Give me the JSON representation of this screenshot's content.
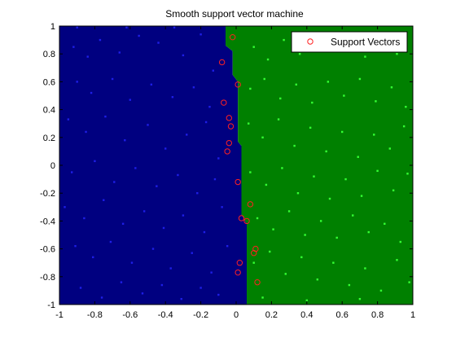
{
  "chart_data": {
    "type": "scatter",
    "title": "Smooth support vector machine",
    "xlabel": "",
    "ylabel": "",
    "xlim": [
      -1,
      1
    ],
    "ylim": [
      -1,
      1
    ],
    "grid": false,
    "legend_position": "top-right",
    "x_ticks": [
      -1,
      -0.8,
      -0.6,
      -0.4,
      -0.2,
      0,
      0.2,
      0.4,
      0.6,
      0.8,
      1
    ],
    "y_ticks": [
      -1,
      -0.8,
      -0.6,
      -0.4,
      -0.2,
      0,
      0.2,
      0.4,
      0.6,
      0.8,
      1
    ],
    "x_tick_labels": [
      "-1",
      "-0.8",
      "-0.6",
      "-0.4",
      "-0.2",
      "0",
      "0.2",
      "0.4",
      "0.6",
      "0.8",
      "1"
    ],
    "y_tick_labels": [
      "-1",
      "-0.8",
      "-0.6",
      "-0.4",
      "-0.2",
      "0",
      "0.2",
      "0.4",
      "0.6",
      "0.8",
      "1"
    ],
    "decision_boundary": {
      "points": [
        [
          -0.06,
          1.0
        ],
        [
          -0.06,
          0.86
        ],
        [
          -0.02,
          0.82
        ],
        [
          -0.02,
          0.65
        ],
        [
          0.01,
          0.6
        ],
        [
          0.01,
          0.17
        ],
        [
          0.03,
          0.14
        ],
        [
          0.03,
          -0.35
        ],
        [
          0.06,
          -0.42
        ],
        [
          0.06,
          -1.0
        ]
      ],
      "left_region_color": "#000080",
      "right_region_color": "#008000"
    },
    "series": [
      {
        "name": "",
        "color": "#1e1ee6",
        "marker": "dot",
        "points": [
          [
            -0.92,
            0.85
          ],
          [
            -0.84,
            0.78
          ],
          [
            -0.77,
            0.9
          ],
          [
            -0.66,
            0.81
          ],
          [
            -0.55,
            0.93
          ],
          [
            -0.44,
            0.88
          ],
          [
            -0.3,
            0.79
          ],
          [
            -0.2,
            0.94
          ],
          [
            -0.13,
            0.68
          ],
          [
            -0.9,
            0.6
          ],
          [
            -0.82,
            0.52
          ],
          [
            -0.7,
            0.62
          ],
          [
            -0.6,
            0.47
          ],
          [
            -0.48,
            0.58
          ],
          [
            -0.36,
            0.49
          ],
          [
            -0.24,
            0.56
          ],
          [
            -0.15,
            0.42
          ],
          [
            -0.95,
            0.33
          ],
          [
            -0.85,
            0.24
          ],
          [
            -0.74,
            0.35
          ],
          [
            -0.63,
            0.18
          ],
          [
            -0.5,
            0.29
          ],
          [
            -0.4,
            0.12
          ],
          [
            -0.28,
            0.22
          ],
          [
            -0.17,
            0.31
          ],
          [
            -0.1,
            0.05
          ],
          [
            -0.93,
            -0.05
          ],
          [
            -0.8,
            0.03
          ],
          [
            -0.69,
            -0.12
          ],
          [
            -0.57,
            -0.02
          ],
          [
            -0.45,
            -0.15
          ],
          [
            -0.33,
            -0.07
          ],
          [
            -0.22,
            -0.2
          ],
          [
            -0.12,
            -0.1
          ],
          [
            -0.97,
            -0.3
          ],
          [
            -0.86,
            -0.38
          ],
          [
            -0.75,
            -0.25
          ],
          [
            -0.64,
            -0.42
          ],
          [
            -0.52,
            -0.33
          ],
          [
            -0.41,
            -0.45
          ],
          [
            -0.3,
            -0.36
          ],
          [
            -0.18,
            -0.48
          ],
          [
            -0.08,
            -0.3
          ],
          [
            -0.91,
            -0.58
          ],
          [
            -0.81,
            -0.66
          ],
          [
            -0.71,
            -0.55
          ],
          [
            -0.59,
            -0.7
          ],
          [
            -0.47,
            -0.6
          ],
          [
            -0.37,
            -0.74
          ],
          [
            -0.25,
            -0.63
          ],
          [
            -0.14,
            -0.77
          ],
          [
            -0.05,
            -0.58
          ],
          [
            -0.88,
            -0.88
          ],
          [
            -0.76,
            -0.95
          ],
          [
            -0.65,
            -0.84
          ],
          [
            -0.53,
            -0.92
          ],
          [
            -0.42,
            -0.86
          ],
          [
            -0.31,
            -0.96
          ],
          [
            -0.2,
            -0.88
          ],
          [
            -0.1,
            -0.93
          ],
          [
            -0.62,
            0.99
          ],
          [
            -0.35,
            0.99
          ],
          [
            -0.9,
            0.99
          ]
        ]
      },
      {
        "name": "",
        "color": "#33ff33",
        "marker": "dot",
        "points": [
          [
            0.1,
            0.85
          ],
          [
            0.18,
            0.76
          ],
          [
            0.27,
            0.9
          ],
          [
            0.36,
            0.8
          ],
          [
            0.45,
            0.92
          ],
          [
            0.55,
            0.84
          ],
          [
            0.64,
            0.94
          ],
          [
            0.73,
            0.78
          ],
          [
            0.82,
            0.88
          ],
          [
            0.91,
            0.8
          ],
          [
            0.08,
            0.55
          ],
          [
            0.16,
            0.62
          ],
          [
            0.25,
            0.48
          ],
          [
            0.34,
            0.58
          ],
          [
            0.43,
            0.45
          ],
          [
            0.52,
            0.6
          ],
          [
            0.61,
            0.5
          ],
          [
            0.7,
            0.62
          ],
          [
            0.79,
            0.46
          ],
          [
            0.88,
            0.56
          ],
          [
            0.96,
            0.42
          ],
          [
            0.07,
            0.3
          ],
          [
            0.15,
            0.2
          ],
          [
            0.24,
            0.33
          ],
          [
            0.33,
            0.14
          ],
          [
            0.42,
            0.27
          ],
          [
            0.51,
            0.1
          ],
          [
            0.6,
            0.24
          ],
          [
            0.69,
            0.06
          ],
          [
            0.78,
            0.22
          ],
          [
            0.87,
            0.12
          ],
          [
            0.95,
            0.28
          ],
          [
            0.08,
            -0.05
          ],
          [
            0.17,
            -0.14
          ],
          [
            0.26,
            -0.02
          ],
          [
            0.35,
            -0.2
          ],
          [
            0.44,
            -0.08
          ],
          [
            0.53,
            -0.24
          ],
          [
            0.62,
            -0.1
          ],
          [
            0.71,
            -0.22
          ],
          [
            0.8,
            -0.04
          ],
          [
            0.89,
            -0.18
          ],
          [
            0.97,
            -0.06
          ],
          [
            0.12,
            -0.38
          ],
          [
            0.21,
            -0.46
          ],
          [
            0.3,
            -0.33
          ],
          [
            0.39,
            -0.5
          ],
          [
            0.48,
            -0.4
          ],
          [
            0.57,
            -0.52
          ],
          [
            0.66,
            -0.36
          ],
          [
            0.75,
            -0.48
          ],
          [
            0.84,
            -0.42
          ],
          [
            0.93,
            -0.55
          ],
          [
            0.1,
            -0.7
          ],
          [
            0.19,
            -0.62
          ],
          [
            0.28,
            -0.78
          ],
          [
            0.37,
            -0.66
          ],
          [
            0.46,
            -0.82
          ],
          [
            0.55,
            -0.7
          ],
          [
            0.64,
            -0.86
          ],
          [
            0.73,
            -0.74
          ],
          [
            0.82,
            -0.9
          ],
          [
            0.91,
            -0.68
          ],
          [
            0.98,
            -0.84
          ],
          [
            0.15,
            -0.95
          ],
          [
            0.4,
            -0.97
          ],
          [
            0.7,
            -0.96
          ]
        ]
      },
      {
        "name": "Support Vectors",
        "color": "#ff2020",
        "marker": "open-circle",
        "points": [
          [
            -0.02,
            0.92
          ],
          [
            -0.08,
            0.74
          ],
          [
            0.01,
            0.58
          ],
          [
            -0.07,
            0.45
          ],
          [
            -0.04,
            0.34
          ],
          [
            -0.03,
            0.28
          ],
          [
            -0.04,
            0.16
          ],
          [
            -0.05,
            0.1
          ],
          [
            0.01,
            -0.12
          ],
          [
            0.03,
            -0.38
          ],
          [
            0.06,
            -0.4
          ],
          [
            0.08,
            -0.28
          ],
          [
            0.11,
            -0.6
          ],
          [
            0.1,
            -0.63
          ],
          [
            0.02,
            -0.7
          ],
          [
            0.01,
            -0.77
          ],
          [
            0.12,
            -0.84
          ]
        ]
      }
    ]
  }
}
